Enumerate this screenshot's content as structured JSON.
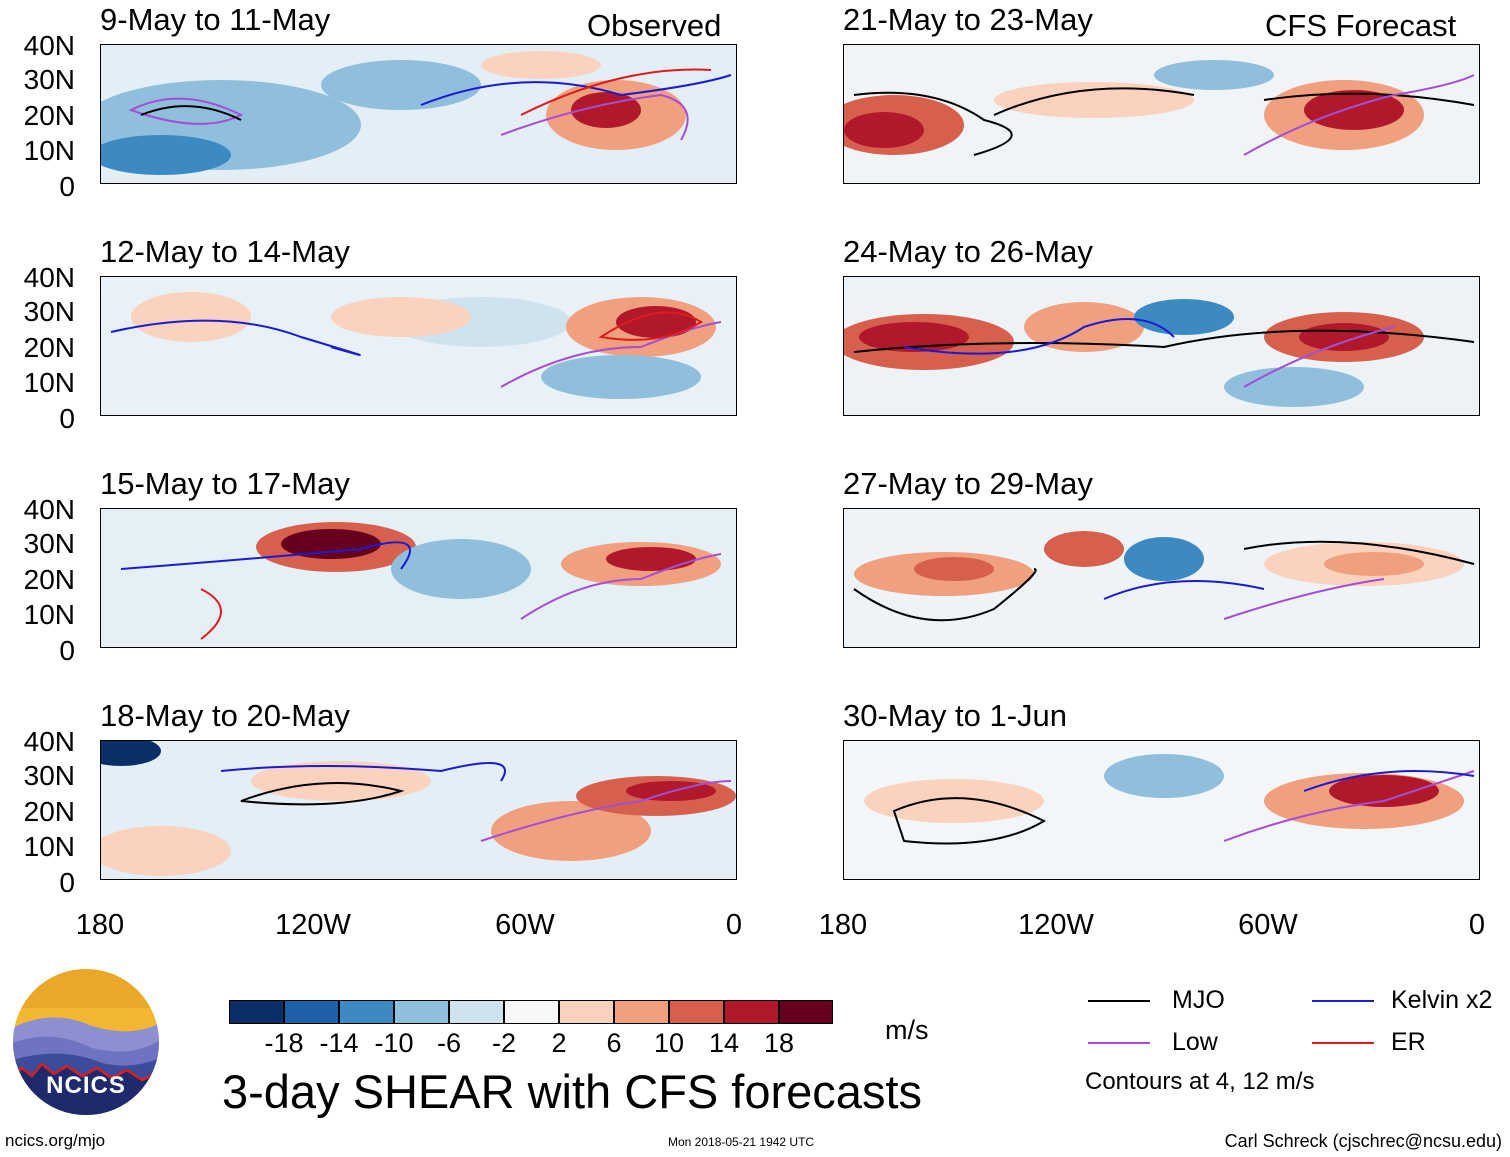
{
  "labels": {
    "observed": "Observed",
    "forecast": "CFS Forecast"
  },
  "panels": [
    {
      "title": "9-May to 11-May"
    },
    {
      "title": "12-May to 14-May"
    },
    {
      "title": "15-May to 17-May"
    },
    {
      "title": "18-May to 20-May"
    },
    {
      "title": "21-May to 23-May"
    },
    {
      "title": "24-May to 26-May"
    },
    {
      "title": "27-May to 29-May"
    },
    {
      "title": "30-May to 1-Jun"
    }
  ],
  "y_ticks": [
    "40N",
    "30N",
    "20N",
    "10N",
    "0"
  ],
  "x_ticks": [
    "180",
    "120W",
    "60W",
    "0"
  ],
  "colorbar": {
    "labels": [
      "-18",
      "-14",
      "-10",
      "-6",
      "-2",
      "2",
      "6",
      "10",
      "14",
      "18"
    ],
    "colors": [
      "#0a2f66",
      "#1f5fa6",
      "#3d89c2",
      "#8fbfdc",
      "#cfe3ef",
      "#f7f7f7",
      "#fbd2bd",
      "#f0a07f",
      "#d6604d",
      "#b2182b",
      "#67001f"
    ],
    "units": "m/s"
  },
  "legend": {
    "items": [
      {
        "label": "MJO",
        "color": "#000000"
      },
      {
        "label": "Kelvin x2",
        "color": "#1a1ad6"
      },
      {
        "label": "Low",
        "color": "#a64dd6"
      },
      {
        "label": "ER",
        "color": "#e01b1b"
      }
    ],
    "note": "Contours at 4, 12 m/s"
  },
  "main_title": "3-day SHEAR with CFS forecasts",
  "logo": {
    "text": "NCICS"
  },
  "footer": {
    "url": "ncics.org/mjo",
    "timestamp": "Mon 2018-05-21 1942 UTC",
    "author": "Carl Schreck (cjschrec@ncsu.edu)"
  }
}
